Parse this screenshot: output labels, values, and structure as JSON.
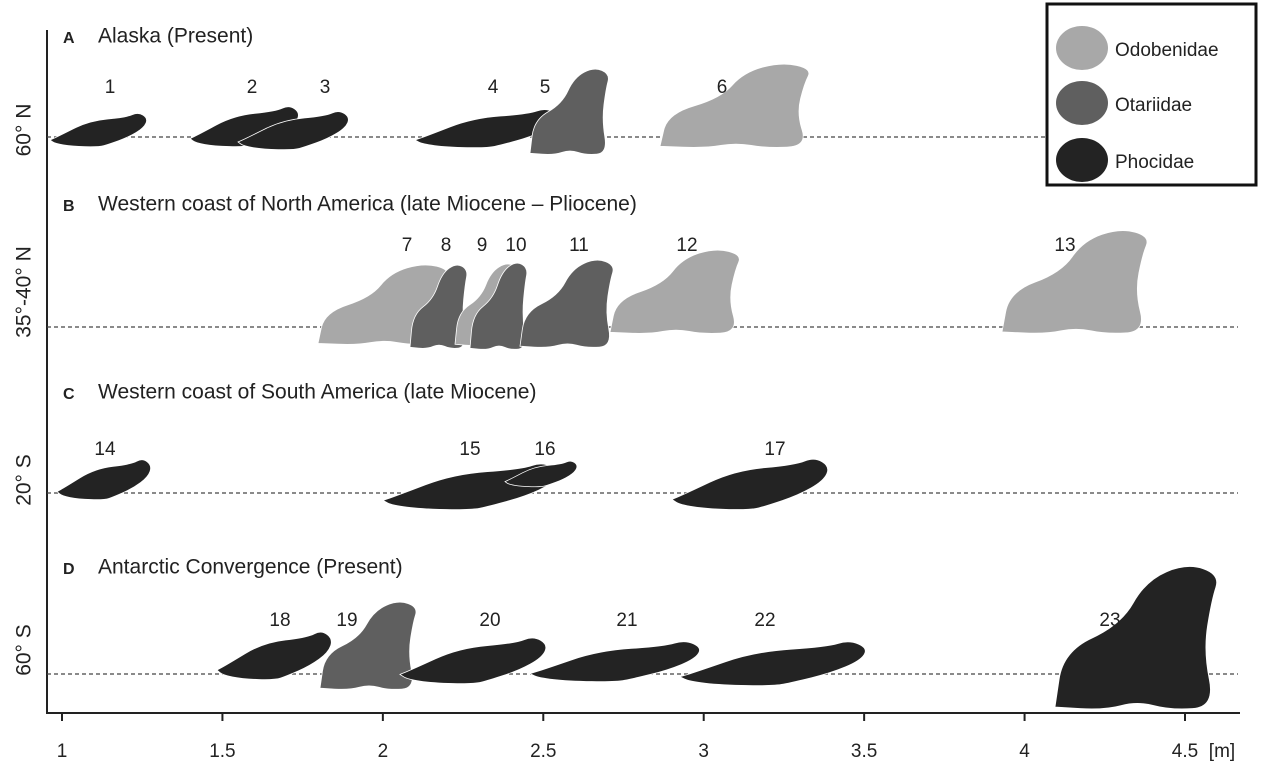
{
  "axis": {
    "ticks": [
      1,
      1.5,
      2,
      2.5,
      3,
      3.5,
      4,
      4.5
    ],
    "unit": "[m]"
  },
  "legend": [
    {
      "name": "Odobenidae",
      "color": "#a8a8a8"
    },
    {
      "name": "Otariidae",
      "color": "#5f5f5f"
    },
    {
      "name": "Phocidae",
      "color": "#232323"
    }
  ],
  "panels": [
    {
      "letter": "A",
      "title": "Alaska (Present)",
      "latitude": "60° N",
      "animals": [
        {
          "label": "1",
          "family": "Phocidae"
        },
        {
          "label": "2",
          "family": "Phocidae"
        },
        {
          "label": "3",
          "family": "Phocidae"
        },
        {
          "label": "4",
          "family": "Phocidae"
        },
        {
          "label": "5",
          "family": "Otariidae"
        },
        {
          "label": "6",
          "family": "Odobenidae"
        }
      ]
    },
    {
      "letter": "B",
      "title": "Western coast of North America (late Miocene – Pliocene)",
      "latitude": "35°-40° N",
      "animals": [
        {
          "label": "7",
          "family": "Odobenidae"
        },
        {
          "label": "8",
          "family": "Otariidae"
        },
        {
          "label": "9",
          "family": "Odobenidae"
        },
        {
          "label": "10",
          "family": "Otariidae"
        },
        {
          "label": "11",
          "family": "Otariidae"
        },
        {
          "label": "12",
          "family": "Odobenidae"
        },
        {
          "label": "13",
          "family": "Odobenidae"
        }
      ]
    },
    {
      "letter": "C",
      "title": "Western coast of South America (late Miocene)",
      "latitude": "20° S",
      "animals": [
        {
          "label": "14",
          "family": "Phocidae"
        },
        {
          "label": "15",
          "family": "Phocidae"
        },
        {
          "label": "16",
          "family": "Phocidae"
        },
        {
          "label": "17",
          "family": "Phocidae"
        }
      ]
    },
    {
      "letter": "D",
      "title": "Antarctic Convergence (Present)",
      "latitude": "60° S",
      "animals": [
        {
          "label": "18",
          "family": "Phocidae"
        },
        {
          "label": "19",
          "family": "Otariidae"
        },
        {
          "label": "20",
          "family": "Phocidae"
        },
        {
          "label": "21",
          "family": "Phocidae"
        },
        {
          "label": "22",
          "family": "Phocidae"
        },
        {
          "label": "23",
          "family": "Phocidae"
        }
      ]
    }
  ]
}
